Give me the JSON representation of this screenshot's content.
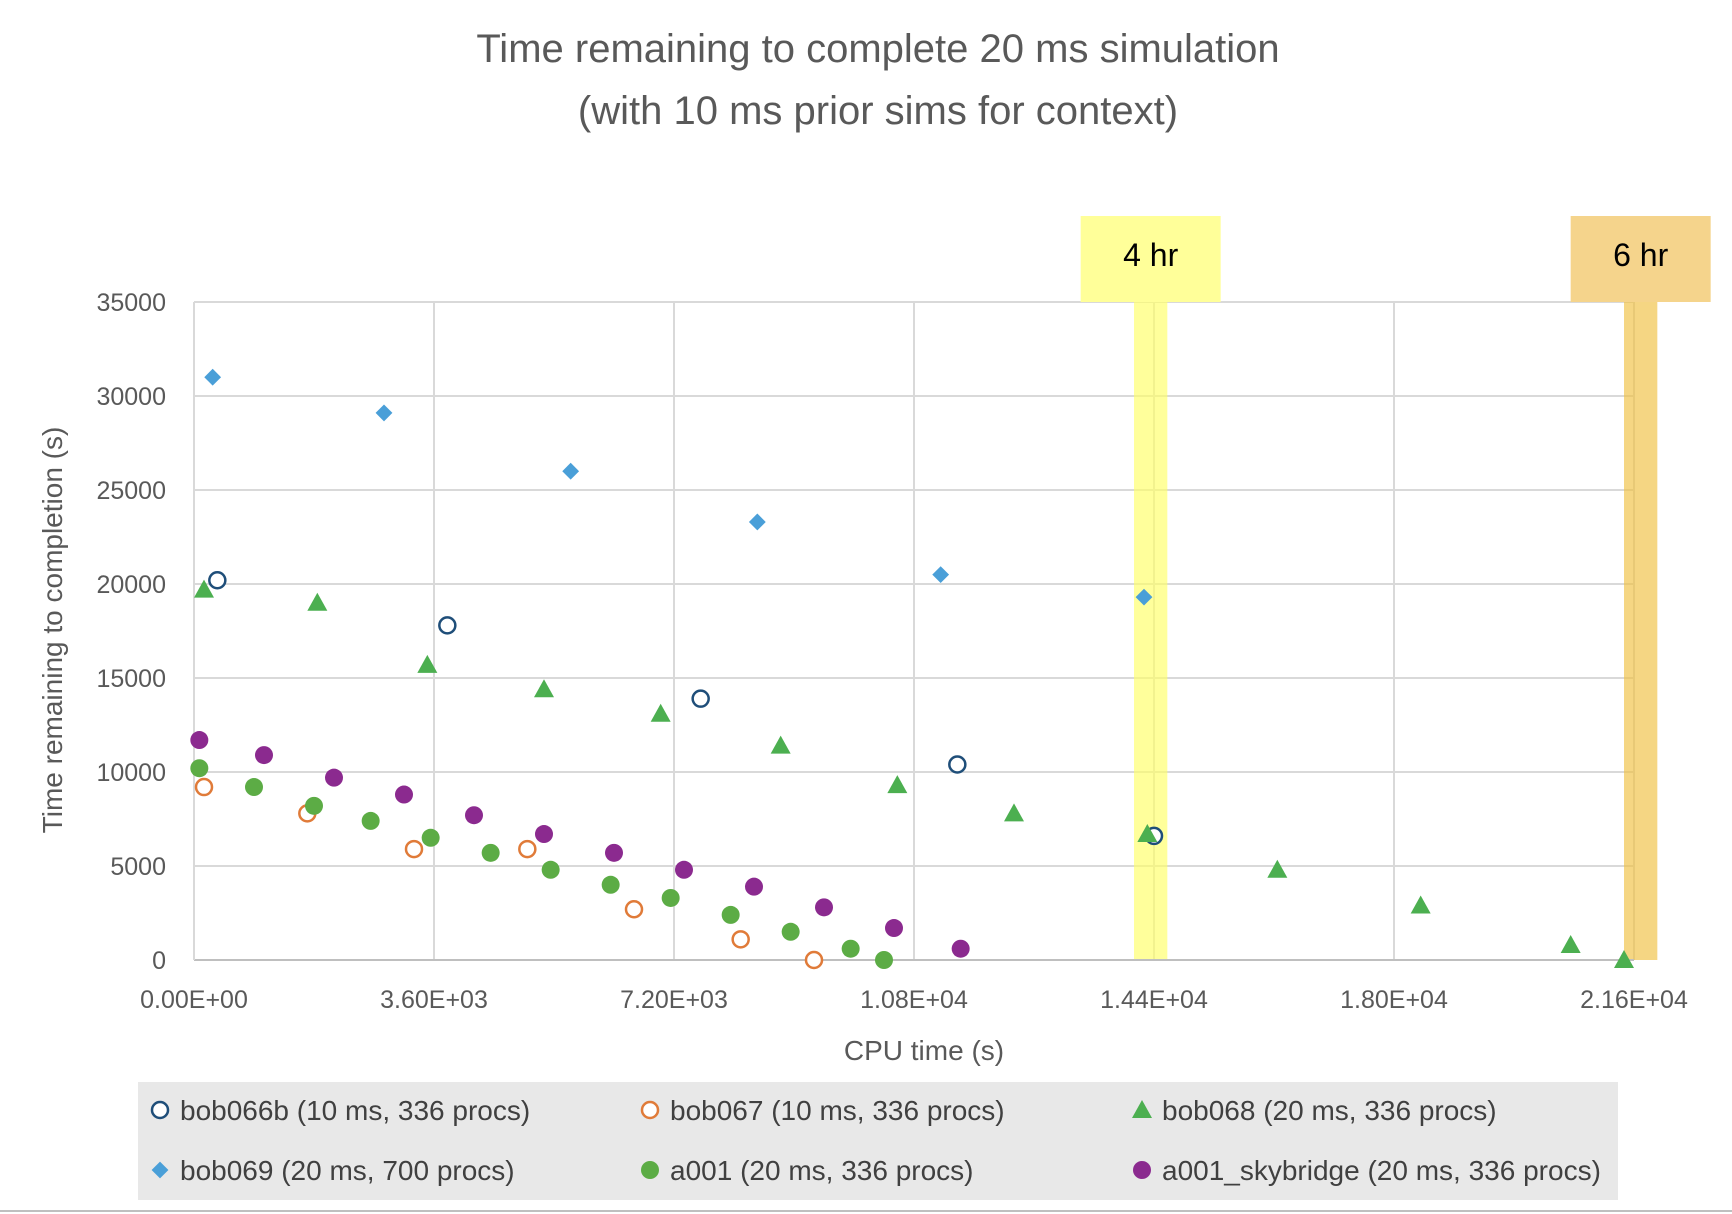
{
  "chart_data": {
    "type": "scatter",
    "title": [
      "Time remaining to complete 20 ms simulation",
      "(with 10 ms prior sims for context)"
    ],
    "xlabel": "CPU time (s)",
    "ylabel": "Time remaining to completion (s)",
    "xlim": [
      0,
      21600
    ],
    "ylim": [
      0,
      35000
    ],
    "x_ticks": [
      0,
      3600,
      7200,
      10800,
      14400,
      18000,
      21600
    ],
    "x_tick_labels": [
      "0.00E+00",
      "3.60E+03",
      "7.20E+03",
      "1.08E+04",
      "1.44E+04",
      "1.80E+04",
      "2.16E+04"
    ],
    "y_ticks": [
      0,
      5000,
      10000,
      15000,
      20000,
      25000,
      30000,
      35000
    ],
    "y_tick_labels": [
      "0",
      "5000",
      "10000",
      "15000",
      "20000",
      "25000",
      "30000",
      "35000"
    ],
    "grid": true,
    "legend_position": "bottom",
    "bands": [
      {
        "label": "4 hr",
        "x_start": 14100,
        "x_end": 14600,
        "color": "#ffff66",
        "label_color": "#ffff99"
      },
      {
        "label": "6 hr",
        "x_start": 21450,
        "x_end": 21950,
        "color": "#f0c040",
        "label_color": "#f5d48c"
      }
    ],
    "series": [
      {
        "name": "bob066b (10 ms, 336 procs)",
        "marker": "circle-open",
        "color": "#1f4e79",
        "points": [
          [
            350,
            20200
          ],
          [
            3800,
            17800
          ],
          [
            7600,
            13900
          ],
          [
            11450,
            10400
          ],
          [
            14400,
            6600
          ]
        ]
      },
      {
        "name": "bob067 (10 ms, 336 procs)",
        "marker": "circle-open",
        "color": "#e07b39",
        "points": [
          [
            150,
            9200
          ],
          [
            1700,
            7800
          ],
          [
            3300,
            5900
          ],
          [
            5000,
            5900
          ],
          [
            6600,
            2700
          ],
          [
            8200,
            1100
          ],
          [
            9300,
            0
          ]
        ]
      },
      {
        "name": "bob068 (20 ms, 336 procs)",
        "marker": "triangle",
        "color": "#4caf50",
        "points": [
          [
            150,
            19700
          ],
          [
            1850,
            19000
          ],
          [
            3500,
            15700
          ],
          [
            5250,
            14400
          ],
          [
            7000,
            13100
          ],
          [
            8800,
            11400
          ],
          [
            10550,
            9300
          ],
          [
            12300,
            7800
          ],
          [
            14300,
            6700
          ],
          [
            16250,
            4800
          ],
          [
            18400,
            2900
          ],
          [
            20650,
            800
          ],
          [
            21450,
            0
          ]
        ]
      },
      {
        "name": "bob069 (20 ms, 700 procs)",
        "marker": "diamond",
        "color": "#4a9fd8",
        "points": [
          [
            280,
            31000
          ],
          [
            2850,
            29100
          ],
          [
            5650,
            26000
          ],
          [
            8450,
            23300
          ],
          [
            11200,
            20500
          ],
          [
            14250,
            19300
          ]
        ]
      },
      {
        "name": "a001 (20 ms, 336 procs)",
        "marker": "circle",
        "color": "#5cac45",
        "points": [
          [
            80,
            10200
          ],
          [
            900,
            9200
          ],
          [
            1800,
            8200
          ],
          [
            2650,
            7400
          ],
          [
            3550,
            6500
          ],
          [
            4450,
            5700
          ],
          [
            5350,
            4800
          ],
          [
            6250,
            4000
          ],
          [
            7150,
            3300
          ],
          [
            8050,
            2400
          ],
          [
            8950,
            1500
          ],
          [
            9850,
            600
          ],
          [
            10350,
            0
          ]
        ]
      },
      {
        "name": "a001_skybridge (20 ms, 336 procs)",
        "marker": "circle",
        "color": "#8b2a8f",
        "points": [
          [
            80,
            11700
          ],
          [
            1050,
            10900
          ],
          [
            2100,
            9700
          ],
          [
            3150,
            8800
          ],
          [
            4200,
            7700
          ],
          [
            5250,
            6700
          ],
          [
            6300,
            5700
          ],
          [
            7350,
            4800
          ],
          [
            8400,
            3900
          ],
          [
            9450,
            2800
          ],
          [
            10500,
            1700
          ],
          [
            11500,
            600
          ]
        ]
      }
    ]
  }
}
